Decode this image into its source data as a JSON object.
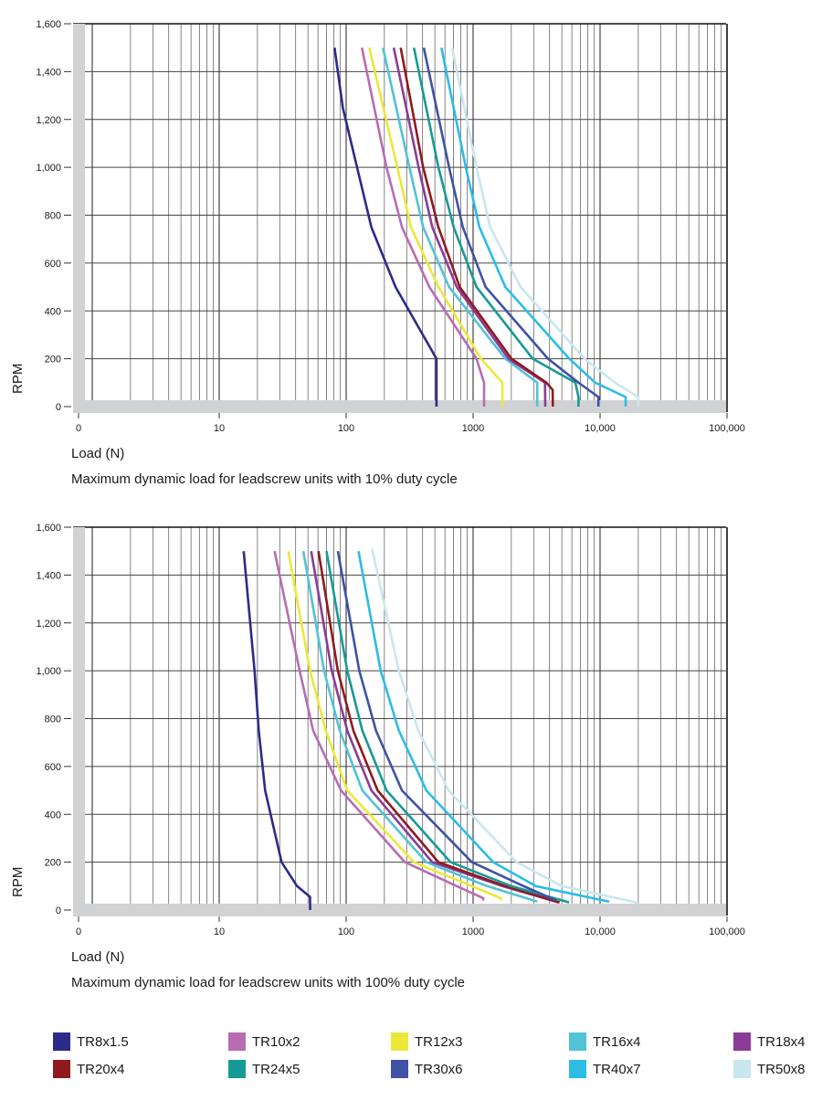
{
  "chart_data": [
    {
      "type": "line",
      "xscale": "log",
      "xlabel": "Load (N)",
      "ylabel": "RPM",
      "caption": "Maximum dynamic load for leadscrew units with 10% duty cycle",
      "xticks": [
        "0",
        "10",
        "100",
        "1000",
        "10,000",
        "100,000"
      ],
      "yticks": [
        "0",
        "200",
        "400",
        "600",
        "800",
        "1,000",
        "1,200",
        "1,400",
        "1,600"
      ],
      "xlim": [
        1,
        100000
      ],
      "ylim": [
        0,
        1600
      ],
      "grid": true,
      "series": [
        {
          "name": "TR8x1.5",
          "points": [
            [
              81,
              1500
            ],
            [
              94,
              1250
            ],
            [
              158,
              750
            ],
            [
              245,
              500
            ],
            [
              515,
              200
            ],
            [
              515,
              0
            ]
          ]
        },
        {
          "name": "TR10x2",
          "points": [
            [
              133,
              1500
            ],
            [
              208,
              1000
            ],
            [
              275,
              750
            ],
            [
              452,
              500
            ],
            [
              1063,
              200
            ],
            [
              1220,
              100
            ],
            [
              1220,
              0
            ]
          ]
        },
        {
          "name": "TR12x3",
          "points": [
            [
              152,
              1500
            ],
            [
              253,
              1000
            ],
            [
              324,
              750
            ],
            [
              533,
              500
            ],
            [
              1154,
              200
            ],
            [
              1700,
              100
            ],
            [
              1700,
              0
            ]
          ]
        },
        {
          "name": "TR16x4",
          "points": [
            [
              195,
              1500
            ],
            [
              315,
              1000
            ],
            [
              404,
              750
            ],
            [
              647,
              500
            ],
            [
              1795,
              200
            ],
            [
              3200,
              100
            ],
            [
              3200,
              0
            ]
          ]
        },
        {
          "name": "TR18x4",
          "points": [
            [
              237,
              1500
            ],
            [
              372,
              1000
            ],
            [
              477,
              750
            ],
            [
              743,
              500
            ],
            [
              1897,
              200
            ],
            [
              3680,
              100
            ],
            [
              3700,
              0
            ]
          ]
        },
        {
          "name": "TR20x4",
          "points": [
            [
              269,
              1500
            ],
            [
              404,
              1000
            ],
            [
              533,
              750
            ],
            [
              784,
              500
            ],
            [
              2005,
              200
            ],
            [
              3780,
              100
            ],
            [
              4230,
              70
            ],
            [
              4250,
              0
            ]
          ]
        },
        {
          "name": "TR24x5",
          "points": [
            [
              342,
              1500
            ],
            [
              533,
              1000
            ],
            [
              703,
              750
            ],
            [
              1063,
              500
            ],
            [
              2950,
              200
            ],
            [
              6390,
              100
            ],
            [
              6760,
              40
            ],
            [
              6760,
              0
            ]
          ]
        },
        {
          "name": "TR30x6",
          "points": [
            [
              409,
              1500
            ],
            [
              647,
              1000
            ],
            [
              829,
              750
            ],
            [
              1255,
              500
            ],
            [
              3890,
              200
            ],
            [
              6760,
              100
            ],
            [
              9700,
              40
            ],
            [
              9700,
              0
            ]
          ]
        },
        {
          "name": "TR40x7",
          "points": [
            [
              563,
              1500
            ],
            [
              876,
              1000
            ],
            [
              1122,
              750
            ],
            [
              1795,
              500
            ],
            [
              5720,
              200
            ],
            [
              9160,
              100
            ],
            [
              15900,
              40
            ],
            [
              15900,
              0
            ]
          ]
        },
        {
          "name": "TR50x8",
          "points": [
            [
              683,
              1500
            ],
            [
              1063,
              1000
            ],
            [
              1362,
              750
            ],
            [
              2367,
              500
            ],
            [
              7550,
              200
            ],
            [
              13100,
              100
            ],
            [
              20000,
              40
            ],
            [
              20000,
              0
            ]
          ]
        }
      ]
    },
    {
      "type": "line",
      "xscale": "log",
      "xlabel": "Load (N)",
      "ylabel": "RPM",
      "caption": "Maximum dynamic load for leadscrew units with 100% duty cycle",
      "xticks": [
        "0",
        "10",
        "100",
        "1000",
        "10,000",
        "100,000"
      ],
      "yticks": [
        "0",
        "200",
        "400",
        "600",
        "800",
        "1,000",
        "1,200",
        "1,400",
        "1,600"
      ],
      "xlim": [
        1,
        100000
      ],
      "ylim": [
        0,
        1600
      ],
      "grid": true,
      "series": [
        {
          "name": "TR8x1.5",
          "points": [
            [
              15.6,
              1500
            ],
            [
              19,
              1000
            ],
            [
              20.5,
              750
            ],
            [
              23,
              500
            ],
            [
              31,
              200
            ],
            [
              41,
              100
            ],
            [
              52,
              55
            ],
            [
              52,
              0
            ]
          ]
        },
        {
          "name": "TR10x2",
          "points": [
            [
              27.3,
              1500
            ],
            [
              43,
              1000
            ],
            [
              55,
              750
            ],
            [
              91,
              500
            ],
            [
              290,
              200
            ],
            [
              743,
              100
            ],
            [
              1200,
              50
            ],
            [
              1200,
              40
            ]
          ]
        },
        {
          "name": "TR12x3",
          "points": [
            [
              35,
              1500
            ],
            [
              52,
              1000
            ],
            [
              69,
              750
            ],
            [
              102,
              500
            ],
            [
              342,
              200
            ],
            [
              978,
              100
            ],
            [
              1650,
              50
            ],
            [
              1650,
              40
            ]
          ]
        },
        {
          "name": "TR16x4",
          "points": [
            [
              46,
              1500
            ],
            [
              67,
              1000
            ],
            [
              89,
              750
            ],
            [
              134,
              500
            ],
            [
              428,
              200
            ],
            [
              1290,
              100
            ],
            [
              3200,
              35
            ]
          ]
        },
        {
          "name": "TR18x4",
          "points": [
            [
              53,
              1500
            ],
            [
              77,
              1000
            ],
            [
              102,
              750
            ],
            [
              158,
              500
            ],
            [
              477,
              200
            ],
            [
              1700,
              100
            ],
            [
              4700,
              32
            ]
          ]
        },
        {
          "name": "TR20x4",
          "points": [
            [
              60.5,
              1500
            ],
            [
              86,
              1000
            ],
            [
              114,
              750
            ],
            [
              177,
              500
            ],
            [
              533,
              200
            ],
            [
              1795,
              100
            ],
            [
              4800,
              32
            ]
          ]
        },
        {
          "name": "TR24x5",
          "points": [
            [
              70,
              1500
            ],
            [
              102,
              1000
            ],
            [
              134,
              750
            ],
            [
              208,
              500
            ],
            [
              664,
              200
            ],
            [
              2000,
              100
            ],
            [
              5700,
              32
            ]
          ]
        },
        {
          "name": "TR30x6",
          "points": [
            [
              86,
              1500
            ],
            [
              127,
              1000
            ],
            [
              172,
              750
            ],
            [
              275,
              500
            ],
            [
              978,
              200
            ],
            [
              2500,
              100
            ],
            [
              4500,
              40
            ]
          ]
        },
        {
          "name": "TR40x7",
          "points": [
            [
              125,
              1500
            ],
            [
              187,
              1000
            ],
            [
              260,
              750
            ],
            [
              428,
              500
            ],
            [
              1440,
              200
            ],
            [
              3120,
              100
            ],
            [
              11800,
              35
            ]
          ]
        },
        {
          "name": "TR50x8",
          "points": [
            [
              160,
              1510
            ],
            [
              260,
              1000
            ],
            [
              370,
              750
            ],
            [
              640,
              500
            ],
            [
              2200,
              200
            ],
            [
              5000,
              100
            ],
            [
              20000,
              30
            ]
          ]
        }
      ]
    }
  ],
  "legend": {
    "items": [
      {
        "name": "TR8x1.5",
        "color": "#2b2c88"
      },
      {
        "name": "TR10x2",
        "color": "#b86cb2"
      },
      {
        "name": "TR12x3",
        "color": "#ece83a"
      },
      {
        "name": "TR16x4",
        "color": "#52c2d6"
      },
      {
        "name": "TR18x4",
        "color": "#8a3c98"
      },
      {
        "name": "TR20x4",
        "color": "#8e1a1f"
      },
      {
        "name": "TR24x5",
        "color": "#179a95"
      },
      {
        "name": "TR30x6",
        "color": "#3f52a5"
      },
      {
        "name": "TR40x7",
        "color": "#2bbde6"
      },
      {
        "name": "TR50x8",
        "color": "#c8e7ee"
      }
    ]
  }
}
